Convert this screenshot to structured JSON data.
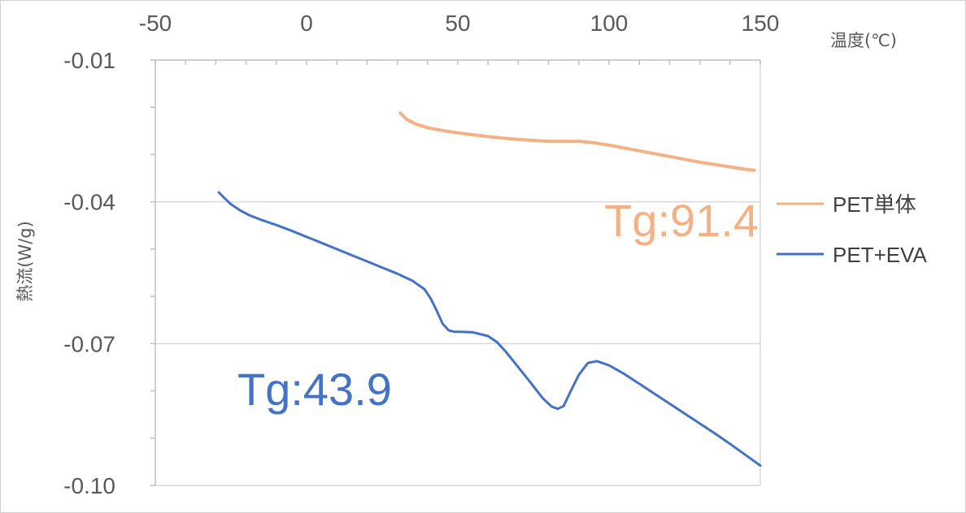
{
  "chart_data": {
    "type": "line",
    "xlabel": "温度(℃)",
    "ylabel": "熱流(W/g)",
    "xlim": [
      -50,
      150
    ],
    "ylim": [
      -0.1,
      -0.01
    ],
    "x_ticks": [
      "-50",
      "0",
      "50",
      "100",
      "150"
    ],
    "y_ticks": [
      "-0.01",
      "-0.04",
      "-0.07",
      "-0.10"
    ],
    "x_axis_position": "top",
    "grid": "horizontal",
    "legend_position": "right",
    "series": [
      {
        "name": "PET単体",
        "color": "#F4B183",
        "x": [
          31,
          33,
          36,
          40,
          45,
          50,
          55,
          60,
          65,
          70,
          75,
          80,
          85,
          90,
          95,
          100,
          105,
          110,
          115,
          120,
          125,
          130,
          135,
          140,
          145,
          148
        ],
        "y": [
          -0.0212,
          -0.0225,
          -0.0235,
          -0.0243,
          -0.0249,
          -0.0254,
          -0.0258,
          -0.0262,
          -0.0265,
          -0.0268,
          -0.027,
          -0.0272,
          -0.0272,
          -0.0272,
          -0.0275,
          -0.028,
          -0.0286,
          -0.0292,
          -0.0298,
          -0.0304,
          -0.031,
          -0.0316,
          -0.0321,
          -0.0326,
          -0.0331,
          -0.0333
        ]
      },
      {
        "name": "PET+EVA",
        "color": "#4472C4",
        "x": [
          -29,
          -27,
          -25,
          -22,
          -19,
          -15,
          -10,
          -5,
          0,
          5,
          10,
          15,
          20,
          25,
          30,
          35,
          39,
          41,
          43,
          45,
          47,
          49,
          51,
          55,
          60,
          63,
          66,
          70,
          74,
          78,
          81,
          83,
          85,
          87,
          90,
          93,
          96,
          100,
          105,
          110,
          115,
          120,
          125,
          130,
          135,
          140,
          145,
          150
        ],
        "y": [
          -0.038,
          -0.0393,
          -0.0405,
          -0.0418,
          -0.0428,
          -0.0438,
          -0.0449,
          -0.0461,
          -0.0474,
          -0.0487,
          -0.05,
          -0.0513,
          -0.0526,
          -0.0539,
          -0.0552,
          -0.0567,
          -0.0585,
          -0.0604,
          -0.063,
          -0.0658,
          -0.0672,
          -0.0675,
          -0.0675,
          -0.0676,
          -0.0684,
          -0.0697,
          -0.0718,
          -0.075,
          -0.0782,
          -0.0815,
          -0.0833,
          -0.0838,
          -0.0832,
          -0.0805,
          -0.0766,
          -0.0741,
          -0.0737,
          -0.0746,
          -0.0764,
          -0.0785,
          -0.0806,
          -0.0827,
          -0.0848,
          -0.0869,
          -0.089,
          -0.0912,
          -0.0935,
          -0.0958
        ]
      }
    ],
    "annotations": [
      {
        "text": "Tg:91.4",
        "color": "#F4B183"
      },
      {
        "text": "Tg:43.9",
        "color": "#4472C4"
      }
    ]
  }
}
